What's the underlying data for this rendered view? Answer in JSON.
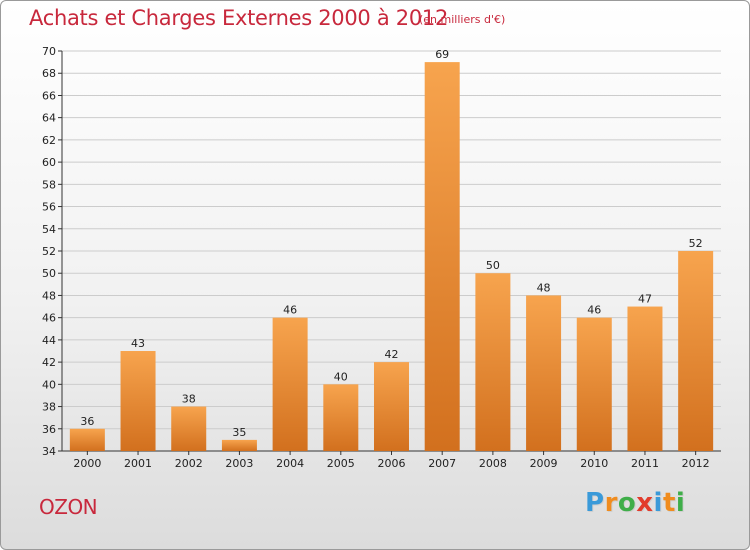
{
  "title": "Achats et Charges Externes 2000 à 2012",
  "subtitle": "(en milliers d'€)",
  "city": "OZON",
  "logo": {
    "letters": [
      "P",
      "r",
      "o",
      "x",
      "i",
      "t",
      "i"
    ],
    "colors": [
      "#3a9ad9",
      "#f08c1e",
      "#3fae49",
      "#e23c2c",
      "#3a9ad9",
      "#f08c1e",
      "#3fae49"
    ]
  },
  "colors": {
    "title": "#c8283c",
    "bar_light": "#f7a44e",
    "bar_dark": "#d2701e",
    "grid": "#cccccc"
  },
  "chart_data": {
    "type": "bar",
    "title": "Achats et Charges Externes 2000 à 2012",
    "subtitle": "(en milliers d'€)",
    "categories": [
      "2000",
      "2001",
      "2002",
      "2003",
      "2004",
      "2005",
      "2006",
      "2007",
      "2008",
      "2009",
      "2010",
      "2011",
      "2012"
    ],
    "values": [
      36,
      43,
      38,
      35,
      46,
      40,
      42,
      69,
      50,
      48,
      46,
      47,
      52
    ],
    "ylim": [
      34,
      70
    ],
    "yticks": [
      34,
      36,
      38,
      40,
      42,
      44,
      46,
      48,
      50,
      52,
      54,
      56,
      58,
      60,
      62,
      64,
      66,
      68,
      70
    ],
    "grid": true,
    "xlabel": "",
    "ylabel": ""
  }
}
